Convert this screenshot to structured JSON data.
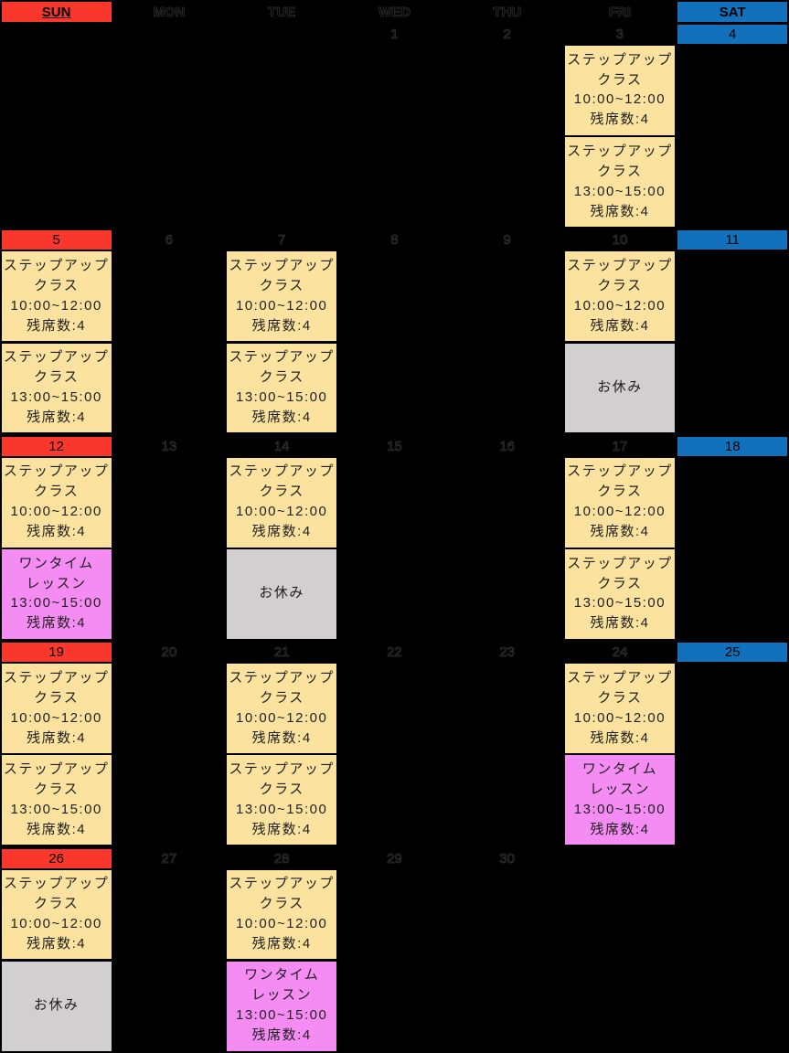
{
  "colors": {
    "background": "#000000",
    "sun": "#FA372C",
    "sat": "#1171BC",
    "stepup": "#FBE39F",
    "onetime": "#F58CF3",
    "rest": "#D1CFCF"
  },
  "header": {
    "days": [
      {
        "label": "SUN",
        "style": "sun"
      },
      {
        "label": "MON",
        "style": "ghost"
      },
      {
        "label": "TUE",
        "style": "ghost"
      },
      {
        "label": "WED",
        "style": "ghost"
      },
      {
        "label": "THU",
        "style": "ghost"
      },
      {
        "label": "FRI",
        "style": "ghost"
      },
      {
        "label": "SAT",
        "style": "sat"
      }
    ]
  },
  "event_templates_note": "types: stepup=yellow class block, onetime=pink lesson block, rest=gray holiday block",
  "weeks": [
    {
      "days": [
        {
          "date": "",
          "date_style": "none",
          "events": []
        },
        {
          "date": "",
          "date_style": "none",
          "events": []
        },
        {
          "date": "",
          "date_style": "none",
          "events": []
        },
        {
          "date": "1",
          "date_style": "ghost",
          "events": []
        },
        {
          "date": "2",
          "date_style": "ghost",
          "events": []
        },
        {
          "date": "3",
          "date_style": "ghost",
          "events": [
            {
              "type": "stepup",
              "lines": [
                "ステップアップ",
                "クラス",
                "10:00~12:00",
                "残席数:4"
              ]
            },
            {
              "type": "stepup",
              "lines": [
                "ステップアップ",
                "クラス",
                "13:00~15:00",
                "残席数:4"
              ]
            }
          ]
        },
        {
          "date": "4",
          "date_style": "blue",
          "events": []
        }
      ]
    },
    {
      "days": [
        {
          "date": "5",
          "date_style": "red",
          "events": [
            {
              "type": "stepup",
              "lines": [
                "ステップアップ",
                "クラス",
                "10:00~12:00",
                "残席数:4"
              ]
            },
            {
              "type": "stepup",
              "lines": [
                "ステップアップ",
                "クラス",
                "13:00~15:00",
                "残席数:4"
              ]
            }
          ]
        },
        {
          "date": "6",
          "date_style": "ghost",
          "events": []
        },
        {
          "date": "7",
          "date_style": "ghost",
          "events": [
            {
              "type": "stepup",
              "lines": [
                "ステップアップ",
                "クラス",
                "10:00~12:00",
                "残席数:4"
              ]
            },
            {
              "type": "stepup",
              "lines": [
                "ステップアップ",
                "クラス",
                "13:00~15:00",
                "残席数:4"
              ]
            }
          ]
        },
        {
          "date": "8",
          "date_style": "ghost",
          "events": []
        },
        {
          "date": "9",
          "date_style": "ghost",
          "events": []
        },
        {
          "date": "10",
          "date_style": "ghost",
          "events": [
            {
              "type": "stepup",
              "lines": [
                "ステップアップ",
                "クラス",
                "10:00~12:00",
                "残席数:4"
              ]
            },
            {
              "type": "rest",
              "lines": [
                "お休み"
              ]
            }
          ]
        },
        {
          "date": "11",
          "date_style": "blue",
          "events": []
        }
      ]
    },
    {
      "days": [
        {
          "date": "12",
          "date_style": "red",
          "events": [
            {
              "type": "stepup",
              "lines": [
                "ステップアップ",
                "クラス",
                "10:00~12:00",
                "残席数:4"
              ]
            },
            {
              "type": "onetime",
              "lines": [
                "ワンタイム",
                "レッスン",
                "13:00~15:00",
                "残席数:4"
              ]
            }
          ]
        },
        {
          "date": "13",
          "date_style": "ghost",
          "events": []
        },
        {
          "date": "14",
          "date_style": "ghost",
          "events": [
            {
              "type": "stepup",
              "lines": [
                "ステップアップ",
                "クラス",
                "10:00~12:00",
                "残席数:4"
              ]
            },
            {
              "type": "rest",
              "lines": [
                "お休み"
              ]
            }
          ]
        },
        {
          "date": "15",
          "date_style": "ghost",
          "events": []
        },
        {
          "date": "16",
          "date_style": "ghost",
          "events": []
        },
        {
          "date": "17",
          "date_style": "ghost",
          "events": [
            {
              "type": "stepup",
              "lines": [
                "ステップアップ",
                "クラス",
                "10:00~12:00",
                "残席数:4"
              ]
            },
            {
              "type": "stepup",
              "lines": [
                "ステップアップ",
                "クラス",
                "13:00~15:00",
                "残席数:4"
              ]
            }
          ]
        },
        {
          "date": "18",
          "date_style": "blue",
          "events": []
        }
      ]
    },
    {
      "days": [
        {
          "date": "19",
          "date_style": "red",
          "events": [
            {
              "type": "stepup",
              "lines": [
                "ステップアップ",
                "クラス",
                "10:00~12:00",
                "残席数:4"
              ]
            },
            {
              "type": "stepup",
              "lines": [
                "ステップアップ",
                "クラス",
                "13:00~15:00",
                "残席数:4"
              ]
            }
          ]
        },
        {
          "date": "20",
          "date_style": "ghost",
          "events": []
        },
        {
          "date": "21",
          "date_style": "ghost",
          "events": [
            {
              "type": "stepup",
              "lines": [
                "ステップアップ",
                "クラス",
                "10:00~12:00",
                "残席数:4"
              ]
            },
            {
              "type": "stepup",
              "lines": [
                "ステップアップ",
                "クラス",
                "13:00~15:00",
                "残席数:4"
              ]
            }
          ]
        },
        {
          "date": "22",
          "date_style": "ghost",
          "events": []
        },
        {
          "date": "23",
          "date_style": "ghost",
          "events": []
        },
        {
          "date": "24",
          "date_style": "ghost",
          "events": [
            {
              "type": "stepup",
              "lines": [
                "ステップアップ",
                "クラス",
                "10:00~12:00",
                "残席数:4"
              ]
            },
            {
              "type": "onetime",
              "lines": [
                "ワンタイム",
                "レッスン",
                "13:00~15:00",
                "残席数:4"
              ]
            }
          ]
        },
        {
          "date": "25",
          "date_style": "blue",
          "events": []
        }
      ]
    },
    {
      "days": [
        {
          "date": "26",
          "date_style": "red",
          "events": [
            {
              "type": "stepup",
              "lines": [
                "ステップアップ",
                "クラス",
                "10:00~12:00",
                "残席数:4"
              ]
            },
            {
              "type": "rest",
              "lines": [
                "お休み"
              ]
            }
          ]
        },
        {
          "date": "27",
          "date_style": "ghost",
          "events": []
        },
        {
          "date": "28",
          "date_style": "ghost",
          "events": [
            {
              "type": "stepup",
              "lines": [
                "ステップアップ",
                "クラス",
                "10:00~12:00",
                "残席数:4"
              ]
            },
            {
              "type": "onetime",
              "lines": [
                "ワンタイム",
                "レッスン",
                "13:00~15:00",
                "残席数:4"
              ]
            }
          ]
        },
        {
          "date": "29",
          "date_style": "ghost",
          "events": []
        },
        {
          "date": "30",
          "date_style": "ghost",
          "events": []
        },
        {
          "date": "",
          "date_style": "none",
          "events": []
        },
        {
          "date": "",
          "date_style": "none",
          "events": []
        }
      ]
    }
  ]
}
